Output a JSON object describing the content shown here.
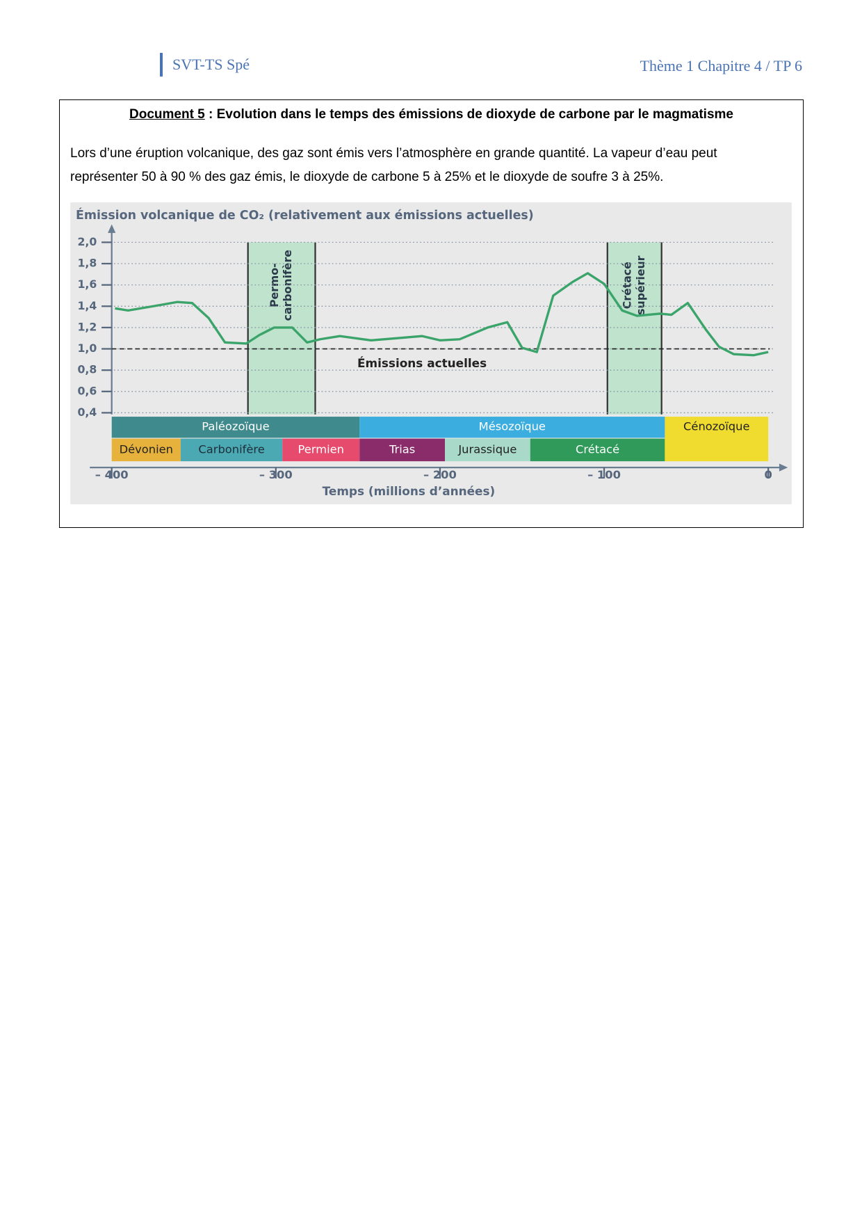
{
  "header": {
    "left": "SVT-TS Spé",
    "right": "Thème 1 Chapitre 4 / TP 6"
  },
  "document": {
    "title": {
      "label": "Document 5",
      "text": " : Evolution dans le temps des émissions de dioxyde de carbone par le magmatisme"
    },
    "paragraph_lines": [
      "Lors d’une éruption volcanique, des gaz sont émis vers l’atmosphère en grande quantité. La vapeur d’eau peut",
      "représenter 50 à 90 % des gaz émis, le dioxyde de carbone 5 à 25% et le dioxyde de soufre 3 à 25%."
    ]
  },
  "chart_data": {
    "type": "line",
    "title": "Émission volcanique de CO₂ (relativement aux émissions actuelles)",
    "x_label": "Temps (millions d’années)",
    "x": [
      -398,
      -390,
      -371,
      -360,
      -351,
      -341,
      -331,
      -318,
      -310,
      -301,
      -290,
      -281,
      -273,
      -261,
      -242,
      -226,
      -211,
      -200,
      -188,
      -171,
      -159,
      -150,
      -141,
      -131,
      -119,
      -110,
      -100,
      -89,
      -80,
      -66,
      -59,
      -49,
      -38,
      -30,
      -21,
      -9,
      0
    ],
    "series": [
      {
        "color": "#3aa46a",
        "values": [
          1.38,
          1.36,
          1.41,
          1.44,
          1.43,
          1.29,
          1.06,
          1.05,
          1.13,
          1.2,
          1.2,
          1.06,
          1.09,
          1.12,
          1.08,
          1.1,
          1.12,
          1.08,
          1.09,
          1.2,
          1.25,
          1.01,
          0.97,
          1.5,
          1.63,
          1.71,
          1.61,
          1.36,
          1.31,
          1.33,
          1.32,
          1.43,
          1.18,
          1.02,
          0.95,
          0.94,
          0.97
        ]
      }
    ],
    "xlim": [
      -400,
      5
    ],
    "ylim": [
      0.35,
      2.1
    ],
    "xticks": [
      {
        "value": -400,
        "label": "– 400"
      },
      {
        "value": -300,
        "label": "– 300"
      },
      {
        "value": -200,
        "label": "– 200"
      },
      {
        "value": -100,
        "label": "– 100"
      },
      0
    ],
    "yticks": [
      {
        "value": 0.4,
        "label": "0,4"
      },
      {
        "value": 0.6,
        "label": "0,6"
      },
      {
        "value": 0.8,
        "label": "0,8"
      },
      {
        "value": 1.0,
        "label": "1,0"
      },
      {
        "value": 1.2,
        "label": "1,2"
      },
      {
        "value": 1.4,
        "label": "1,4"
      },
      {
        "value": 1.6,
        "label": "1,6"
      },
      {
        "value": 1.8,
        "label": "1,8"
      },
      {
        "value": 2.0,
        "label": "2,0"
      }
    ],
    "grid": true,
    "reference_line": {
      "value": 1.0,
      "label": "Émissions actuelles"
    },
    "bands": [
      {
        "label_lines": [
          "Permo-",
          "carbonifère"
        ],
        "start": -317,
        "end": -276,
        "color": "#bfe3cc"
      },
      {
        "label_lines": [
          "Crétacé",
          "supérieur"
        ],
        "start": -98,
        "end": -65,
        "color": "#bfe3cc"
      }
    ],
    "eras": [
      {
        "name": "Paléozoïque",
        "start": -400,
        "end": -249,
        "color": "#3f8a8c",
        "label_color": "#ffffff"
      },
      {
        "name": "Mésozoïque",
        "start": -249,
        "end": -63,
        "color": "#3badde",
        "label_color": "#ffffff"
      },
      {
        "name": "Cénozoïque",
        "start": -63,
        "end": 0,
        "color": "#f0dc2e",
        "label_color": "#222222"
      }
    ],
    "periods": [
      {
        "name": "Dévonien",
        "start": -400,
        "end": -358,
        "color": "#e6b23c",
        "label_color": "#222222"
      },
      {
        "name": "Carbonifère",
        "start": -358,
        "end": -296,
        "color": "#4aa9b2",
        "label_color": "#1e2e3a"
      },
      {
        "name": "Permien",
        "start": -296,
        "end": -249,
        "color": "#e64a6c",
        "label_color": "#ffffff"
      },
      {
        "name": "Trias",
        "start": -249,
        "end": -197,
        "color": "#8a2b6a",
        "label_color": "#ffffff"
      },
      {
        "name": "Jurassique",
        "start": -197,
        "end": -145,
        "color": "#a9d9c9",
        "label_color": "#222222"
      },
      {
        "name": "Crétacé",
        "start": -145,
        "end": -63,
        "color": "#2f9a59",
        "label_color": "#ffffff"
      }
    ]
  }
}
